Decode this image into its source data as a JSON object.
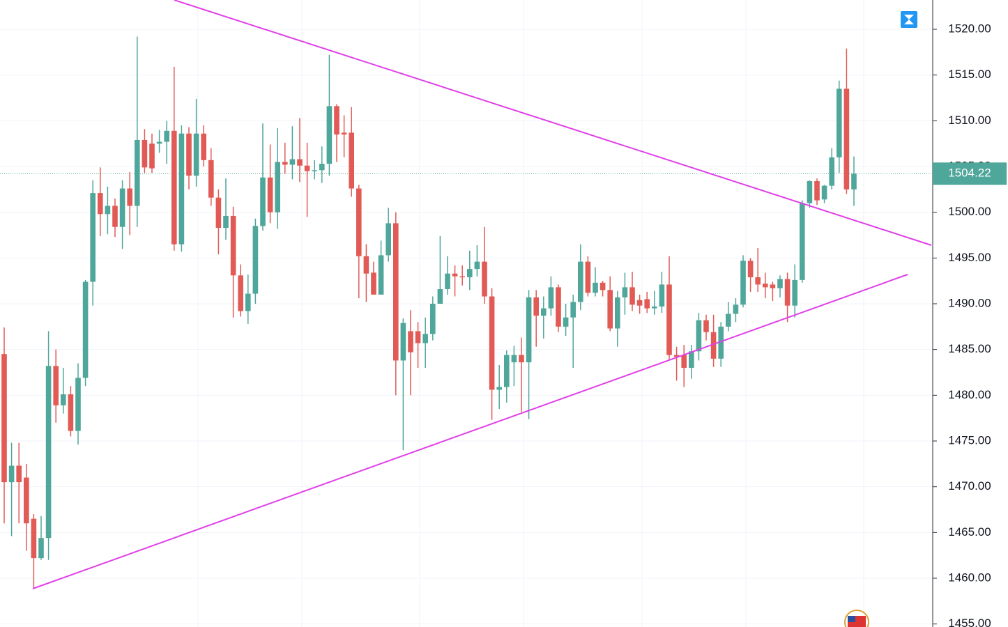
{
  "chart_data": {
    "type": "candlestick",
    "up_color": "#4fa69a",
    "down_color": "#e15a55",
    "grid": true,
    "ylim": [
      1454.67,
      1523.2
    ],
    "yticks": [
      {
        "value": 1455,
        "label": "1455.00"
      },
      {
        "value": 1460,
        "label": "1460.00"
      },
      {
        "value": 1465,
        "label": "1465.00"
      },
      {
        "value": 1470,
        "label": "1470.00"
      },
      {
        "value": 1475,
        "label": "1475.00"
      },
      {
        "value": 1480,
        "label": "1480.00"
      },
      {
        "value": 1485,
        "label": "1485.00"
      },
      {
        "value": 1490,
        "label": "1490.00"
      },
      {
        "value": 1495,
        "label": "1495.00"
      },
      {
        "value": 1500,
        "label": "1500.00"
      },
      {
        "value": 1505,
        "label": "1505.00"
      },
      {
        "value": 1510,
        "label": "1510.00"
      },
      {
        "value": 1515,
        "label": "1515.00"
      },
      {
        "value": 1520,
        "label": "1520.00"
      }
    ],
    "last_price": 1504.22,
    "open": [
      1484.5,
      1470.5,
      1472.3,
      1471,
      1466.5,
      1462.2,
      1464.4,
      1483.2,
      1478.9,
      1480.1,
      1476.1,
      1481.9,
      1492.4,
      1502.1,
      1499.8,
      1500.7,
      1498.4,
      1502.6,
      1500.7,
      1507.9,
      1507.5,
      1507.5,
      1507.7,
      1508.9,
      1496.5,
      1508.6,
      1504,
      1508.6,
      1505.7,
      1501.6,
      1498.3,
      1499.6,
      1493.1,
      1489.2,
      1491.1,
      1498.5,
      1503.8,
      1500,
      1505.5,
      1505.2,
      1505.8,
      1505.1,
      1504.5,
      1504.6,
      1505.3,
      1511.6,
      1508.7,
      1508.7,
      1502.6,
      1495.2,
      1493.4,
      1491,
      1495.3,
      1498.8,
      1483.8,
      1487,
      1487,
      1485.7,
      1486.7,
      1490,
      1491.6,
      1493.3,
      1493,
      1492.9,
      1493.8,
      1494.6,
      1490.8,
      1480.6,
      1480.9,
      1483.6,
      1484.4,
      1483.6,
      1490.7,
      1488.7,
      1489.5,
      1491.8,
      1487.5,
      1488.5,
      1490.2,
      1494.6,
      1491.2,
      1492.3,
      1491.5,
      1487.3,
      1490.7,
      1491.8,
      1490.4,
      1490.5,
      1489.5,
      1489.7,
      1492.1,
      1484.4,
      1484.4,
      1483,
      1484.8,
      1488.2,
      1486.9,
      1484,
      1487.5,
      1488.9,
      1489.9,
      1494.7,
      1492.9,
      1492.2,
      1492.1,
      1491.7,
      1492.7,
      1489.8,
      1492.6,
      1501,
      1503.4,
      1501.4,
      1502.9,
      1506,
      1513.5,
      1502.5
    ],
    "high": [
      1487.4,
      1474.8,
      1474.8,
      1472.5,
      1467,
      1466.8,
      1487,
      1485,
      1483,
      1481,
      1483.5,
      1492.6,
      1503.5,
      1504.9,
      1502.8,
      1501.5,
      1503.5,
      1504.4,
      1519.2,
      1509.1,
      1508.6,
      1509,
      1510,
      1515.9,
      1509.5,
      1509.3,
      1512.4,
      1509.5,
      1507,
      1502.5,
      1503.7,
      1500.6,
      1494.3,
      1493.2,
      1499.3,
      1509.7,
      1507.4,
      1509.2,
      1507.6,
      1509.4,
      1510.3,
      1507.6,
      1505.7,
      1507.2,
      1517.2,
      1511.8,
      1510.6,
      1511.5,
      1503,
      1496.5,
      1494.6,
      1496.9,
      1500.5,
      1500,
      1488.4,
      1489.3,
      1488,
      1488.5,
      1490.8,
      1497.4,
      1495.2,
      1494.2,
      1494.2,
      1495.8,
      1496.4,
      1498.4,
      1491.7,
      1483.3,
      1484.9,
      1485.4,
      1486.3,
      1491.5,
      1491.5,
      1490.8,
      1493,
      1492.1,
      1490,
      1491,
      1496.5,
      1495.2,
      1494,
      1492.5,
      1493,
      1491.4,
      1493.4,
      1493.5,
      1491,
      1491.3,
      1491.4,
      1493.5,
      1495.2,
      1485.3,
      1485.5,
      1485.5,
      1489,
      1488.8,
      1488.8,
      1488,
      1490.2,
      1490.6,
      1495.3,
      1495,
      1496.1,
      1493.4,
      1492.4,
      1493.1,
      1493.4,
      1494.3,
      1501.3,
      1503.5,
      1503.7,
      1503,
      1507,
      1514.4,
      1517.9,
      1506.1
    ],
    "low": [
      1466,
      1464.6,
      1466,
      1463,
      1458.9,
      1462,
      1462,
      1477,
      1478,
      1475.5,
      1474.6,
      1481,
      1489.8,
      1497.4,
      1497.6,
      1497.3,
      1496,
      1497.5,
      1498.4,
      1504.3,
      1504.3,
      1506.5,
      1505.3,
      1495.8,
      1495.7,
      1502.5,
      1502.8,
      1505,
      1500.7,
      1495.4,
      1497,
      1488.5,
      1488.6,
      1487.8,
      1490,
      1498,
      1498.8,
      1498.2,
      1504.2,
      1503.6,
      1503.3,
      1499.5,
      1503.6,
      1503.2,
      1504,
      1505.5,
      1506,
      1501.7,
      1490.6,
      1490.2,
      1491,
      1491,
      1494.6,
      1480,
      1474,
      1480,
      1483,
      1483,
      1486,
      1490,
      1491,
      1490.8,
      1492,
      1491.5,
      1493,
      1490,
      1477.3,
      1478.5,
      1479.2,
      1481,
      1478.2,
      1477.4,
      1485.3,
      1486.2,
      1488.7,
      1486.9,
      1486.5,
      1483,
      1489.3,
      1490.8,
      1490.8,
      1490.8,
      1487,
      1485.3,
      1488.8,
      1489.2,
      1488.9,
      1489,
      1488.8,
      1489,
      1483.8,
      1481.6,
      1480.9,
      1481.8,
      1483.8,
      1486,
      1483.1,
      1483.1,
      1487,
      1488,
      1489.6,
      1491.3,
      1491.3,
      1490.6,
      1490.3,
      1490.7,
      1488,
      1488.5,
      1492.3,
      1500.5,
      1500.8,
      1501,
      1502.5,
      1504.3,
      1502,
      1500.7
    ],
    "close": [
      1470.5,
      1472.3,
      1470.5,
      1466,
      1462.2,
      1464.4,
      1483.2,
      1478.9,
      1480.1,
      1476.1,
      1481.9,
      1492.4,
      1502.1,
      1499.8,
      1500.7,
      1498.4,
      1502.6,
      1500.7,
      1507.9,
      1504.9,
      1504.8,
      1507.7,
      1508.9,
      1496.5,
      1508.6,
      1504,
      1508.6,
      1505.7,
      1501.6,
      1498.3,
      1499.6,
      1493.1,
      1489.2,
      1491.1,
      1498.5,
      1503.8,
      1500,
      1505.5,
      1505.2,
      1505.8,
      1505.1,
      1504.5,
      1504.6,
      1505.3,
      1511.6,
      1508.5,
      1508.5,
      1502.6,
      1495.2,
      1493.3,
      1491,
      1495.3,
      1498.8,
      1483.8,
      1487.9,
      1484.7,
      1485.7,
      1486.7,
      1490,
      1491.6,
      1493.3,
      1493,
      1492.9,
      1493.8,
      1494.6,
      1490.8,
      1480.6,
      1480.9,
      1484.4,
      1484.4,
      1483.6,
      1490.7,
      1488.7,
      1489.5,
      1491.8,
      1487.5,
      1488.5,
      1490.2,
      1494.6,
      1491.2,
      1492.3,
      1491.5,
      1487.3,
      1490.7,
      1491.8,
      1489.9,
      1489.8,
      1489.5,
      1489.7,
      1492.1,
      1484.4,
      1484.2,
      1483,
      1484.8,
      1488.2,
      1486.9,
      1484,
      1487.5,
      1488.9,
      1489.9,
      1494.7,
      1492.9,
      1492.1,
      1491.8,
      1491.7,
      1492.7,
      1489.8,
      1492.6,
      1501,
      1503.4,
      1501.3,
      1502.9,
      1506,
      1513.5,
      1502.5,
      1504.22
    ]
  }
}
